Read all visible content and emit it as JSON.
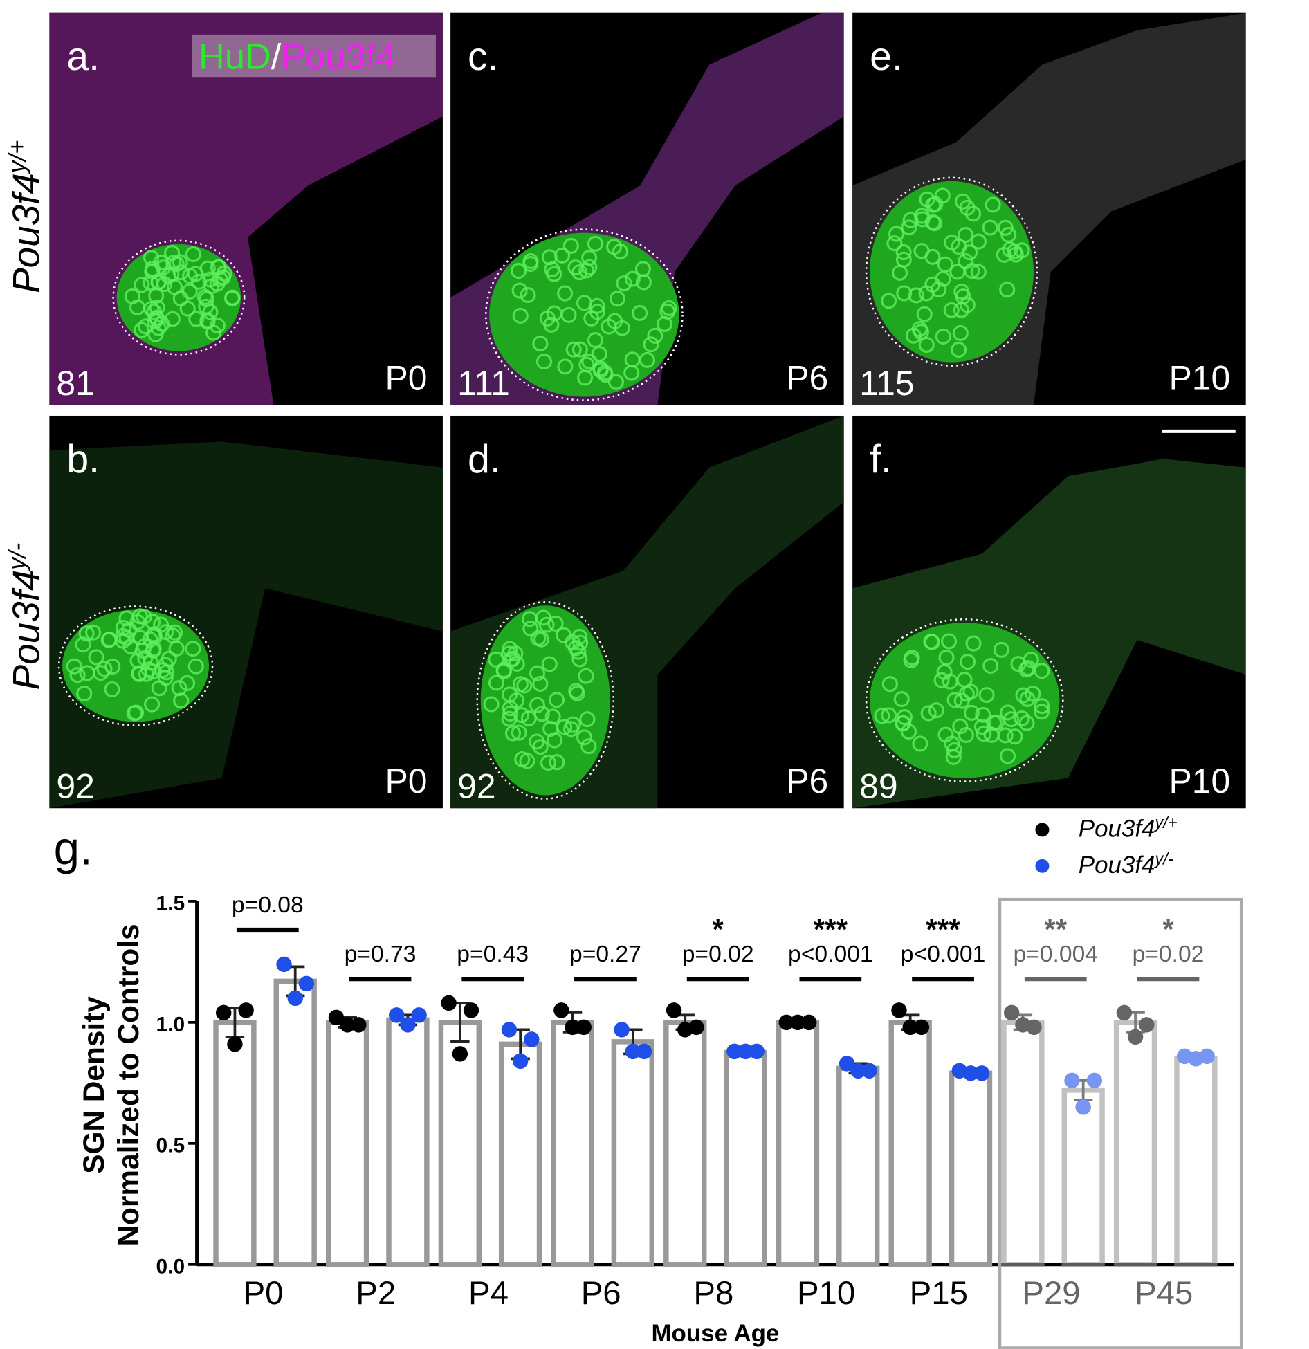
{
  "figure": {
    "stain_label": {
      "parts": [
        "HuD",
        "/",
        "Pou3f4"
      ]
    },
    "row_labels": [
      {
        "text": "Pou3f4",
        "sup": "y/+"
      },
      {
        "text": "Pou3f4",
        "sup": "y/-"
      }
    ],
    "panels": [
      {
        "label": "a.",
        "count": "81",
        "age": "P0"
      },
      {
        "label": "c.",
        "count": "111",
        "age": "P6"
      },
      {
        "label": "e.",
        "count": "115",
        "age": "P10"
      },
      {
        "label": "b.",
        "count": "92",
        "age": "P0"
      },
      {
        "label": "d.",
        "count": "92",
        "age": "P6"
      },
      {
        "label": "f.",
        "count": "89",
        "age": "P10"
      }
    ],
    "chart_label": "g."
  },
  "chart_data": {
    "type": "bar",
    "ylabel": [
      "SGN Density",
      "Normalized to Controls"
    ],
    "xlabel": "Mouse Age",
    "categories": [
      "P0",
      "P2",
      "P4",
      "P6",
      "P8",
      "P10",
      "P15",
      "P29",
      "P45"
    ],
    "boxed_categories": [
      "P29",
      "P45"
    ],
    "series": [
      {
        "name": "Pou3f4",
        "name_sup": "y/+",
        "color": "#000000",
        "values": [
          1.0,
          1.0,
          1.0,
          1.0,
          1.0,
          1.0,
          1.0,
          1.0,
          1.0
        ],
        "errors": [
          0.06,
          0.02,
          0.08,
          0.04,
          0.03,
          0.01,
          0.03,
          0.03,
          0.04
        ],
        "points": [
          [
            1.04,
            1.05,
            0.91
          ],
          [
            1.02,
            0.99,
            0.99
          ],
          [
            1.08,
            1.05,
            0.87
          ],
          [
            1.05,
            0.98,
            0.98
          ],
          [
            1.05,
            0.98,
            0.97
          ],
          [
            1.0,
            1.0,
            1.0
          ],
          [
            1.05,
            0.98,
            0.98
          ],
          [
            1.04,
            0.98,
            0.99
          ],
          [
            1.04,
            0.99,
            0.94
          ]
        ]
      },
      {
        "name": "Pou3f4",
        "name_sup": "y/-",
        "color": "#1f4fe8",
        "values": [
          1.17,
          1.01,
          0.91,
          0.92,
          0.875,
          0.81,
          0.79,
          0.72,
          0.85
        ],
        "errors": [
          0.06,
          0.02,
          0.06,
          0.05,
          0.005,
          0.02,
          0.01,
          0.04,
          0.01
        ],
        "points": [
          [
            1.24,
            1.16,
            1.1
          ],
          [
            1.03,
            1.03,
            0.99
          ],
          [
            0.97,
            0.93,
            0.84
          ],
          [
            0.97,
            0.88,
            0.88
          ],
          [
            0.88,
            0.88,
            0.88
          ],
          [
            0.83,
            0.8,
            0.8
          ],
          [
            0.8,
            0.79,
            0.79
          ],
          [
            0.76,
            0.76,
            0.65
          ],
          [
            0.86,
            0.86,
            0.85
          ]
        ]
      }
    ],
    "p_values": [
      "p=0.08",
      "p=0.73",
      "p=0.43",
      "p=0.27",
      "p=0.02",
      "p<0.001",
      "p<0.001",
      "p=0.004",
      "p=0.02"
    ],
    "significance": [
      null,
      null,
      null,
      null,
      "*",
      "***",
      "***",
      "**",
      "*"
    ],
    "ylim": [
      0,
      1.5
    ],
    "yticks": [
      {
        "value": 0,
        "label": "0.0"
      },
      {
        "value": 0.5,
        "label": "0.5"
      },
      {
        "value": 1,
        "label": "1.0"
      },
      {
        "value": 1.5,
        "label": "1.5"
      }
    ]
  }
}
